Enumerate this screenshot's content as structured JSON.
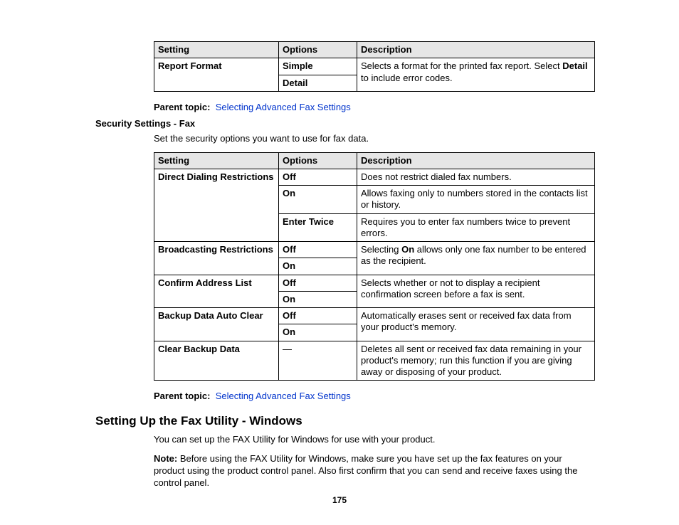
{
  "table1": {
    "headers": [
      "Setting",
      "Options",
      "Description"
    ],
    "row": {
      "setting": "Report Format",
      "opt1": "Simple",
      "opt2": "Detail",
      "desc_pre": "Selects a format for the printed fax report. Select ",
      "desc_bold": "Detail",
      "desc_post": " to include error codes."
    }
  },
  "parent_topic_label": "Parent topic:",
  "parent_topic_link": "Selecting Advanced Fax Settings",
  "security_heading": "Security Settings - Fax",
  "security_intro": "Set the security options you want to use for fax data.",
  "table2": {
    "headers": [
      "Setting",
      "Options",
      "Description"
    ],
    "r1": {
      "setting": "Direct Dialing Restrictions",
      "opt1": "Off",
      "desc1": "Does not restrict dialed fax numbers.",
      "opt2": "On",
      "desc2": "Allows faxing only to numbers stored in the contacts list or history.",
      "opt3": "Enter Twice",
      "desc3": "Requires you to enter fax numbers twice to prevent errors."
    },
    "r2": {
      "setting": "Broadcasting Restrictions",
      "opt1": "Off",
      "opt2": "On",
      "desc_pre": "Selecting ",
      "desc_bold": "On",
      "desc_post": " allows only one fax number to be entered as the recipient."
    },
    "r3": {
      "setting": "Confirm Address List",
      "opt1": "Off",
      "opt2": "On",
      "desc": "Selects whether or not to display a recipient confirmation screen before a fax is sent."
    },
    "r4": {
      "setting": "Backup Data Auto Clear",
      "opt1": "Off",
      "opt2": "On",
      "desc": "Automatically erases sent or received fax data from your product's memory."
    },
    "r5": {
      "setting": "Clear Backup Data",
      "opt1": "—",
      "desc": "Deletes all sent or received fax data remaining in your product's memory; run this function if you are giving away or disposing of your product."
    }
  },
  "h2": "Setting Up the Fax Utility - Windows",
  "h2_intro": "You can set up the FAX Utility for Windows for use with your product.",
  "note_label": "Note:",
  "note_body": " Before using the FAX Utility for Windows, make sure you have set up the fax features on your product using the product control panel. Also first confirm that you can send and receive faxes using the control panel.",
  "page_num": "175"
}
